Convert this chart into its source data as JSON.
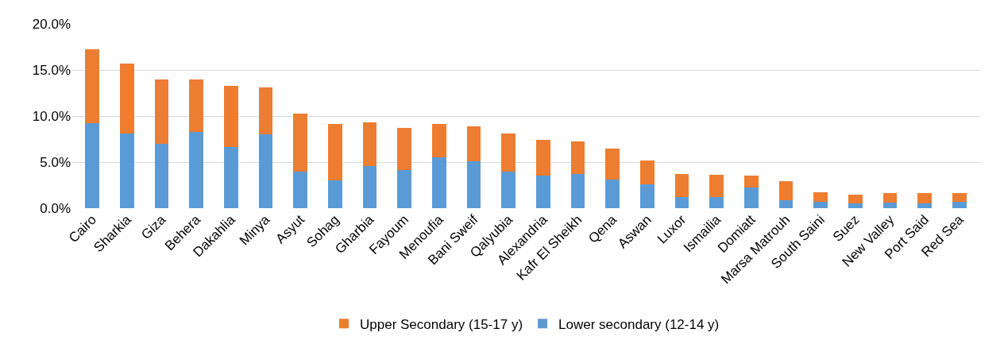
{
  "chart_data": {
    "type": "bar",
    "stacked": true,
    "categories": [
      "Cairo",
      "Sharkia",
      "Giza",
      "Behera",
      "Dakahlia",
      "Minya",
      "Asyut",
      "Sohag",
      "Gharbia",
      "Fayoum",
      "Menoufia",
      "Bani Sweif",
      "Qalyubia",
      "Alexandria",
      "Kafr El Sheikh",
      "Qena",
      "Aswan",
      "Luxor",
      "Ismailia",
      "Domiatt",
      "Marsa Matrouh",
      "South Saini",
      "Suez",
      "New Valley",
      "Port Said",
      "Red Sea"
    ],
    "series": [
      {
        "name": "Lower secondary (12-14 y)",
        "color": "#5b9bd5",
        "values": [
          9.2,
          8.1,
          7.0,
          8.3,
          6.6,
          8.0,
          4.0,
          3.0,
          4.6,
          4.1,
          5.5,
          5.1,
          4.0,
          3.5,
          3.7,
          3.1,
          2.6,
          1.2,
          1.2,
          2.2,
          0.9,
          0.7,
          0.5,
          0.6,
          0.5,
          0.7
        ]
      },
      {
        "name": "Upper Secondary (15-17 y)",
        "color": "#ed7d31",
        "values": [
          8.0,
          7.6,
          7.0,
          5.7,
          6.7,
          5.1,
          6.3,
          6.1,
          4.7,
          4.6,
          3.6,
          3.8,
          4.1,
          3.9,
          3.5,
          3.4,
          2.6,
          2.5,
          2.4,
          1.3,
          2.0,
          1.0,
          1.0,
          1.0,
          1.1,
          0.9
        ]
      }
    ],
    "ylim": [
      0,
      20
    ],
    "yticks": [
      {
        "value": 0,
        "label": "0.0%"
      },
      {
        "value": 5,
        "label": "5.0%"
      },
      {
        "value": 10,
        "label": "10.0%"
      },
      {
        "value": 15,
        "label": "15.0%"
      },
      {
        "value": 20,
        "label": "20.0%"
      }
    ],
    "grid": "y",
    "legend": "bottom"
  }
}
